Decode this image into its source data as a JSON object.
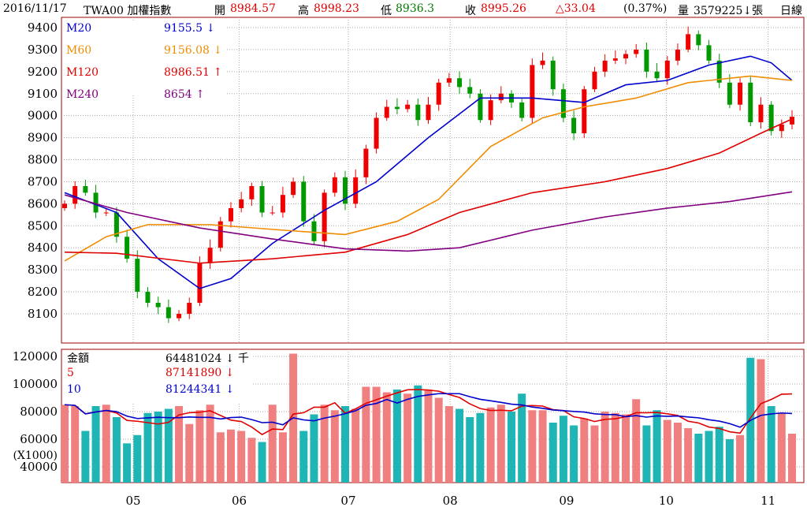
{
  "header": {
    "date": "2016/11/17",
    "symbol": "TWA00 加權指數",
    "open_label": "開",
    "open": "8984.57",
    "high_label": "高",
    "high": "8998.23",
    "low_label": "低",
    "low": "8936.3",
    "close_label": "收",
    "close": "8995.26",
    "change": "△33.04",
    "change_pct": "(0.37%)",
    "volume_label": "量",
    "volume": "3579225↓張",
    "period": "日線"
  },
  "legend": [
    {
      "name": "M20",
      "value": "9155.5 ↓",
      "color": "#0000cc"
    },
    {
      "name": "M60",
      "value": "9156.08 ↓",
      "color": "#f08c00"
    },
    {
      "name": "M120",
      "value": "8986.51 ↑",
      "color": "#e00000"
    },
    {
      "name": "M240",
      "value": "8654 ↑",
      "color": "#800080"
    }
  ],
  "vol_legend": [
    {
      "name": "金額",
      "value": "64481024 ↓ 千",
      "color": "#000"
    },
    {
      "name": "5",
      "value": "87141890 ↓",
      "color": "#e00000"
    },
    {
      "name": "10",
      "value": "81244341 ↓",
      "color": "#0000cc"
    }
  ],
  "chart_data": [
    {
      "type": "candlestick",
      "title": "TWA00 加權指數 日線",
      "ylim": [
        8030,
        9450
      ],
      "yticks": [
        8100,
        8200,
        8300,
        8400,
        8500,
        8600,
        8700,
        8800,
        8900,
        9000,
        9100,
        9200,
        9300,
        9400
      ],
      "months": [
        {
          "label": "05",
          "idx": 6.6
        },
        {
          "label": "06",
          "idx": 16.8
        },
        {
          "label": "07",
          "idx": 27.3
        },
        {
          "label": "08",
          "idx": 37.1
        },
        {
          "label": "09",
          "idx": 48.3
        },
        {
          "label": "10",
          "idx": 57.9
        },
        {
          "label": "11",
          "idx": 67.7
        }
      ],
      "closes": [
        8600,
        8680,
        8650,
        8560,
        8560,
        8450,
        8350,
        8200,
        8150,
        8130,
        8080,
        8100,
        8150,
        8330,
        8400,
        8520,
        8580,
        8620,
        8680,
        8560,
        8560,
        8640,
        8700,
        8520,
        8430,
        8650,
        8720,
        8600,
        8720,
        8850,
        8990,
        9040,
        9030,
        9050,
        8980,
        9050,
        9150,
        9170,
        9130,
        9100,
        8980,
        9070,
        9100,
        9060,
        8990,
        9230,
        9250,
        9120,
        8990,
        8920,
        9120,
        9200,
        9250,
        9260,
        9280,
        9300,
        9200,
        9170,
        9250,
        9300,
        9370,
        9320,
        9250,
        9150,
        9050,
        9150,
        8970,
        9050,
        8930,
        8960,
        8995
      ],
      "ma": [
        {
          "name": "M20",
          "color": "#0000cc",
          "points": [
            [
              0,
              8650
            ],
            [
              5,
              8560
            ],
            [
              9,
              8350
            ],
            [
              13,
              8215
            ],
            [
              16,
              8260
            ],
            [
              20,
              8420
            ],
            [
              25,
              8570
            ],
            [
              30,
              8700
            ],
            [
              35,
              8900
            ],
            [
              40,
              9080
            ],
            [
              45,
              9080
            ],
            [
              50,
              9060
            ],
            [
              54,
              9140
            ],
            [
              58,
              9160
            ],
            [
              62,
              9230
            ],
            [
              66,
              9270
            ],
            [
              68,
              9240
            ],
            [
              70,
              9160
            ]
          ]
        },
        {
          "name": "M60",
          "color": "#f08c00",
          "points": [
            [
              0,
              8340
            ],
            [
              4,
              8450
            ],
            [
              8,
              8505
            ],
            [
              14,
              8505
            ],
            [
              21,
              8480
            ],
            [
              27,
              8460
            ],
            [
              32,
              8520
            ],
            [
              36,
              8620
            ],
            [
              41,
              8860
            ],
            [
              46,
              8990
            ],
            [
              50,
              9040
            ],
            [
              55,
              9080
            ],
            [
              60,
              9150
            ],
            [
              66,
              9180
            ],
            [
              70,
              9160
            ]
          ]
        },
        {
          "name": "M120",
          "color": "#e00000",
          "points": [
            [
              0,
              8380
            ],
            [
              5,
              8375
            ],
            [
              13,
              8330
            ],
            [
              20,
              8350
            ],
            [
              27,
              8380
            ],
            [
              33,
              8460
            ],
            [
              38,
              8560
            ],
            [
              45,
              8650
            ],
            [
              52,
              8700
            ],
            [
              58,
              8760
            ],
            [
              63,
              8830
            ],
            [
              67,
              8920
            ],
            [
              70,
              8985
            ]
          ]
        },
        {
          "name": "M240",
          "color": "#800080",
          "points": [
            [
              0,
              8640
            ],
            [
              6,
              8560
            ],
            [
              13,
              8490
            ],
            [
              20,
              8440
            ],
            [
              27,
              8395
            ],
            [
              33,
              8385
            ],
            [
              38,
              8400
            ],
            [
              45,
              8480
            ],
            [
              52,
              8540
            ],
            [
              58,
              8580
            ],
            [
              64,
              8610
            ],
            [
              70,
              8654
            ]
          ]
        }
      ]
    },
    {
      "type": "bar",
      "title": "金額",
      "unit": "(X1000)",
      "yticks": [
        40000,
        60000,
        80000,
        100000,
        120000
      ],
      "volumes": [
        85000,
        84000,
        66000,
        84000,
        85000,
        76000,
        57000,
        63000,
        79000,
        80000,
        82000,
        84000,
        71000,
        81000,
        85000,
        65000,
        67000,
        66000,
        61000,
        58000,
        85000,
        65000,
        122000,
        66000,
        78000,
        85000,
        81000,
        84000,
        82000,
        98000,
        98000,
        94000,
        96000,
        93000,
        99000,
        96000,
        90000,
        84000,
        82000,
        76000,
        79000,
        83000,
        85000,
        80000,
        93000,
        81000,
        81000,
        72000,
        77000,
        70000,
        75000,
        70000,
        80000,
        79000,
        78000,
        89000,
        70000,
        81000,
        74000,
        72000,
        68000,
        64000,
        66000,
        69000,
        60000,
        63000,
        119000,
        118000,
        84000,
        79000,
        64000
      ]
    }
  ]
}
